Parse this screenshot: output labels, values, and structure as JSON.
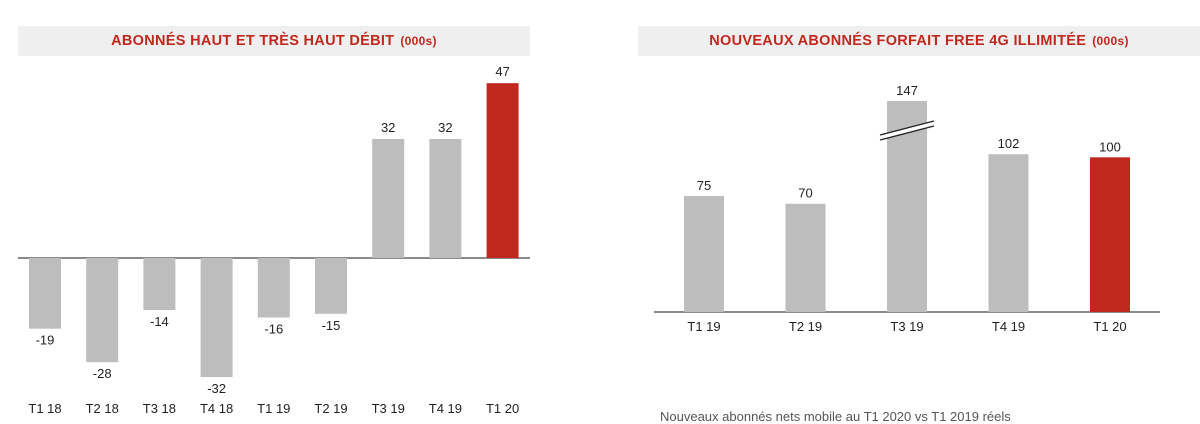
{
  "colors": {
    "bar": "#bdbdbd",
    "highlight": "#c0281e",
    "title_bg": "#efefef",
    "title_text": "#c0281e"
  },
  "left_chart": {
    "title": "ABONNÉS HAUT ET TRÈS HAUT DÉBIT",
    "unit": "(000s)"
  },
  "right_chart": {
    "title": "NOUVEAUX ABONNÉS FORFAIT FREE 4G ILLIMITÉE",
    "unit": "(000s)"
  },
  "footnote": "Nouveaux abonnés nets mobile au T1 2020 vs T1 2019 réels",
  "chart_data": [
    {
      "type": "bar",
      "title": "ABONNÉS HAUT ET TRÈS HAUT DÉBIT (000s)",
      "categories": [
        "T1 18",
        "T2 18",
        "T3 18",
        "T4 18",
        "T1 19",
        "T2 19",
        "T3 19",
        "T4 19",
        "T1 20"
      ],
      "values": [
        -19,
        -28,
        -14,
        -32,
        -16,
        -15,
        32,
        32,
        47
      ],
      "highlight_index": 8,
      "ylim": [
        -32,
        47
      ],
      "grid": false
    },
    {
      "type": "bar",
      "title": "NOUVEAUX ABONNÉS FORFAIT FREE 4G ILLIMITÉE (000s)",
      "categories": [
        "T1 19",
        "T2 19",
        "T3 19",
        "T4 19",
        "T1 20"
      ],
      "values": [
        75,
        70,
        147,
        102,
        100
      ],
      "highlight_index": 4,
      "axis_break_index": 2,
      "ylim": [
        0,
        147
      ],
      "grid": false
    }
  ]
}
